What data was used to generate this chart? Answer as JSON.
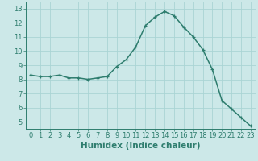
{
  "x": [
    0,
    1,
    2,
    3,
    4,
    5,
    6,
    7,
    8,
    9,
    10,
    11,
    12,
    13,
    14,
    15,
    16,
    17,
    18,
    19,
    20,
    21,
    22,
    23
  ],
  "y": [
    8.3,
    8.2,
    8.2,
    8.3,
    8.1,
    8.1,
    8.0,
    8.1,
    8.2,
    8.9,
    9.4,
    10.3,
    11.8,
    12.4,
    12.8,
    12.5,
    11.7,
    11.0,
    10.1,
    8.7,
    6.5,
    5.9,
    5.3,
    4.7
  ],
  "line_color": "#2e7d6e",
  "marker": "+",
  "marker_size": 3.5,
  "background_color": "#cce8e8",
  "grid_color": "#aad4d4",
  "grid_minor_color": "#c0dede",
  "xlabel": "Humidex (Indice chaleur)",
  "xlim": [
    -0.5,
    23.5
  ],
  "ylim": [
    4.5,
    13.5
  ],
  "yticks": [
    5,
    6,
    7,
    8,
    9,
    10,
    11,
    12,
    13
  ],
  "xticks": [
    0,
    1,
    2,
    3,
    4,
    5,
    6,
    7,
    8,
    9,
    10,
    11,
    12,
    13,
    14,
    15,
    16,
    17,
    18,
    19,
    20,
    21,
    22,
    23
  ],
  "axis_color": "#2e7d6e",
  "tick_color": "#2e7d6e",
  "label_color": "#2e7d6e",
  "font_size_label": 7.5,
  "font_size_tick": 6.0,
  "line_width": 1.1,
  "marker_edge_width": 0.9
}
